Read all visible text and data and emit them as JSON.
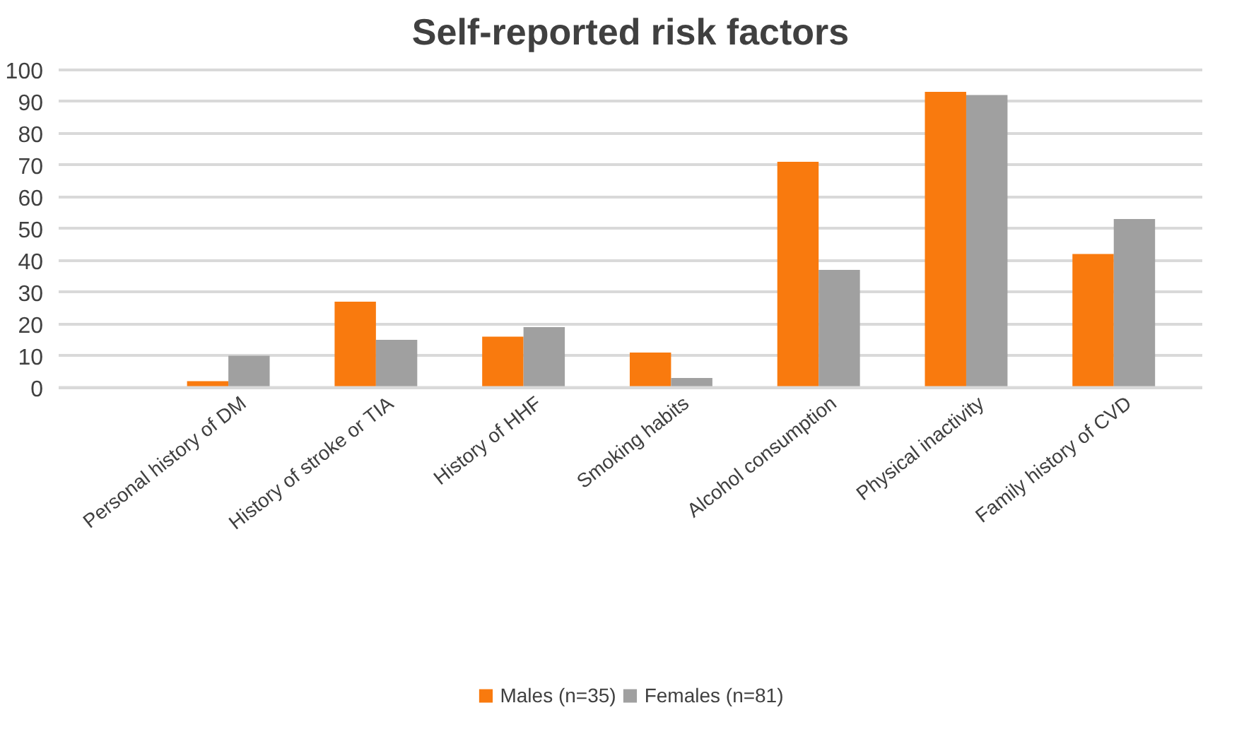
{
  "chart_data": {
    "type": "bar",
    "title": "Self-reported risk factors",
    "categories": [
      "Personal history of DM",
      "History of stroke or TIA",
      "History of HHF",
      "Smoking habits",
      "Alcohol consumption",
      "Physical inactivity",
      "Family history of CVD"
    ],
    "series": [
      {
        "name": "Males (n=35)",
        "color": "#f97a0e",
        "values": [
          2,
          27,
          16,
          11,
          71,
          93,
          42
        ]
      },
      {
        "name": "Females (n=81)",
        "color": "#a0a0a0",
        "values": [
          10,
          15,
          19,
          3,
          37,
          92,
          53
        ]
      }
    ],
    "ylim": [
      0,
      100
    ],
    "yticks": [
      0,
      10,
      20,
      30,
      40,
      50,
      60,
      70,
      80,
      90,
      100
    ],
    "grid": "y",
    "legend": "bottom"
  }
}
